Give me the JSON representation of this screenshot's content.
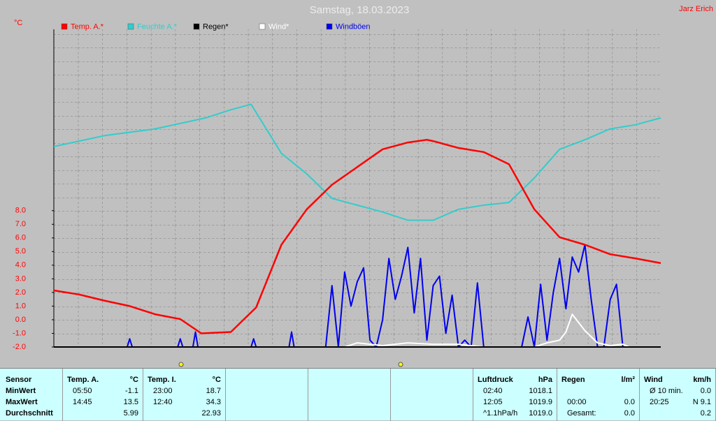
{
  "chart_data": {
    "type": "line",
    "title": "Samstag, 18.03.2023",
    "author": "Jarz Erich",
    "y_label": "°C",
    "xlim": [
      0,
      24
    ],
    "ylim": [
      -2,
      21.3
    ],
    "y2lim": [
      -2,
      21.3
    ],
    "yticks": [
      {
        "value": -2,
        "label": "-2.0"
      },
      {
        "value": -1,
        "label": "-1.0"
      },
      {
        "value": 0,
        "label": "0.0"
      },
      {
        "value": 1,
        "label": "1.0"
      },
      {
        "value": 2,
        "label": "2.0"
      },
      {
        "value": 3,
        "label": "3.0"
      },
      {
        "value": 4,
        "label": "4.0"
      },
      {
        "value": 5,
        "label": "5.0"
      },
      {
        "value": 6,
        "label": "6.0"
      },
      {
        "value": 7,
        "label": "7.0"
      },
      {
        "value": 8,
        "label": "8.0"
      }
    ],
    "grid": true,
    "series": [
      {
        "name": "Temp. A.*",
        "color": "#ff0000",
        "x": [
          0,
          1,
          2,
          3,
          4,
          5,
          5.83,
          7,
          8,
          9,
          10,
          11,
          12,
          13,
          14,
          14.75,
          15,
          16,
          17,
          18,
          19,
          20,
          21,
          22,
          23,
          24
        ],
        "values": [
          2.15,
          1.85,
          1.4,
          1.0,
          0.4,
          0.05,
          -1.0,
          -0.9,
          0.9,
          5.5,
          8.1,
          9.9,
          11.2,
          12.5,
          13.0,
          13.2,
          13.1,
          12.6,
          12.3,
          11.4,
          8.1,
          6.05,
          5.5,
          4.8,
          4.5,
          4.15
        ]
      },
      {
        "name": "Feuchte A.*",
        "color": "#33cccc",
        "axis": "y2",
        "x": [
          0,
          2,
          4,
          6,
          7,
          7.8,
          9,
          10,
          11,
          12,
          13,
          14,
          15,
          16,
          17,
          18,
          19,
          20,
          21,
          22,
          23,
          24
        ],
        "values": [
          12.7,
          13.5,
          14.0,
          14.8,
          15.4,
          15.8,
          12.2,
          10.7,
          8.9,
          8.4,
          7.9,
          7.3,
          7.3,
          8.1,
          8.4,
          8.6,
          10.4,
          12.5,
          13.2,
          14.0,
          14.3,
          14.8
        ]
      },
      {
        "name": "Regen*",
        "color": "#000000",
        "x": [
          0,
          24
        ],
        "values": [
          -2,
          -2
        ]
      },
      {
        "name": "Wind*",
        "color": "#ffffff",
        "x": [
          11.5,
          12,
          13,
          14,
          15,
          16,
          17,
          19,
          19.5,
          20,
          20.25,
          20.5,
          21,
          21.5,
          22,
          22.5,
          22.75
        ],
        "values": [
          -2,
          -1.7,
          -1.9,
          -1.7,
          -1.8,
          -1.8,
          -2,
          -2,
          -1.7,
          -1.5,
          -0.9,
          0.4,
          -0.8,
          -1.7,
          -1.9,
          -1.8,
          -2
        ]
      },
      {
        "name": "Windböen",
        "color": "#0000ee",
        "x": [
          0,
          2.9,
          3,
          3.1,
          4.9,
          5,
          5.1,
          5.5,
          5.6,
          5.7,
          7.8,
          7.9,
          8,
          9.3,
          9.4,
          9.5,
          10.5,
          10.75,
          11,
          11.25,
          11.5,
          11.75,
          12,
          12.25,
          12.5,
          12.75,
          13,
          13.25,
          13.5,
          13.75,
          14,
          14.25,
          14.5,
          14.75,
          15,
          15.25,
          15.5,
          15.75,
          16,
          16.25,
          16.5,
          16.75,
          17,
          18.5,
          18.75,
          19,
          19.25,
          19.5,
          19.75,
          20,
          20.25,
          20.5,
          20.75,
          21,
          21.25,
          21.5,
          21.75,
          22,
          22.25,
          22.5,
          22.75
        ],
        "values": [
          -2,
          -2,
          -1.4,
          -2,
          -2,
          -1.4,
          -2,
          -2,
          -0.9,
          -2,
          -2,
          -1.4,
          -2,
          -2,
          -0.9,
          -2,
          -2,
          -2,
          2.5,
          -2,
          3.5,
          1.0,
          2.8,
          3.8,
          -1.5,
          -2,
          0.0,
          4.5,
          1.5,
          3.2,
          5.3,
          0.5,
          4.5,
          -1.5,
          2.5,
          3.2,
          -1.0,
          1.8,
          -2,
          -1.5,
          -2,
          2.7,
          -2,
          -2,
          0.2,
          -2,
          2.6,
          -1.5,
          2.0,
          4.5,
          0.8,
          4.6,
          3.5,
          5.5,
          1.5,
          -2,
          -2,
          1.5,
          2.6,
          -2,
          -2
        ]
      }
    ]
  },
  "table": {
    "sensor": [
      "Sensor",
      "MinWert",
      "MaxWert",
      "Durchschnitt"
    ],
    "groups": [
      {
        "header": [
          "Temp. A.",
          "°C"
        ],
        "rows": [
          [
            "05:50",
            "-1.1"
          ],
          [
            "14:45",
            "13.5"
          ],
          [
            null,
            "5.99"
          ]
        ]
      },
      {
        "header": [
          "Temp. I.",
          "°C"
        ],
        "rows": [
          [
            "23:00",
            "18.7"
          ],
          [
            "12:40",
            "34.3"
          ],
          [
            null,
            "22.93"
          ]
        ]
      },
      {
        "header": [
          "Luftdruck",
          "hPa"
        ],
        "rows": [
          [
            "02:40",
            "1018.1"
          ],
          [
            "12:05",
            "1019.9"
          ],
          [
            "^1.1hPa/h",
            "1019.0"
          ]
        ]
      },
      {
        "header": [
          "Regen",
          "l/m²"
        ],
        "rows": [
          [
            null,
            null
          ],
          [
            "00:00",
            "0.0"
          ],
          [
            "Gesamt:",
            "0.0"
          ]
        ]
      },
      {
        "header": [
          "Wind",
          "km/h"
        ],
        "rows": [
          [
            "Ø 10 min.",
            "0.0"
          ],
          [
            "20:25",
            "N 9.1"
          ],
          [
            null,
            "0.2"
          ]
        ]
      }
    ]
  }
}
